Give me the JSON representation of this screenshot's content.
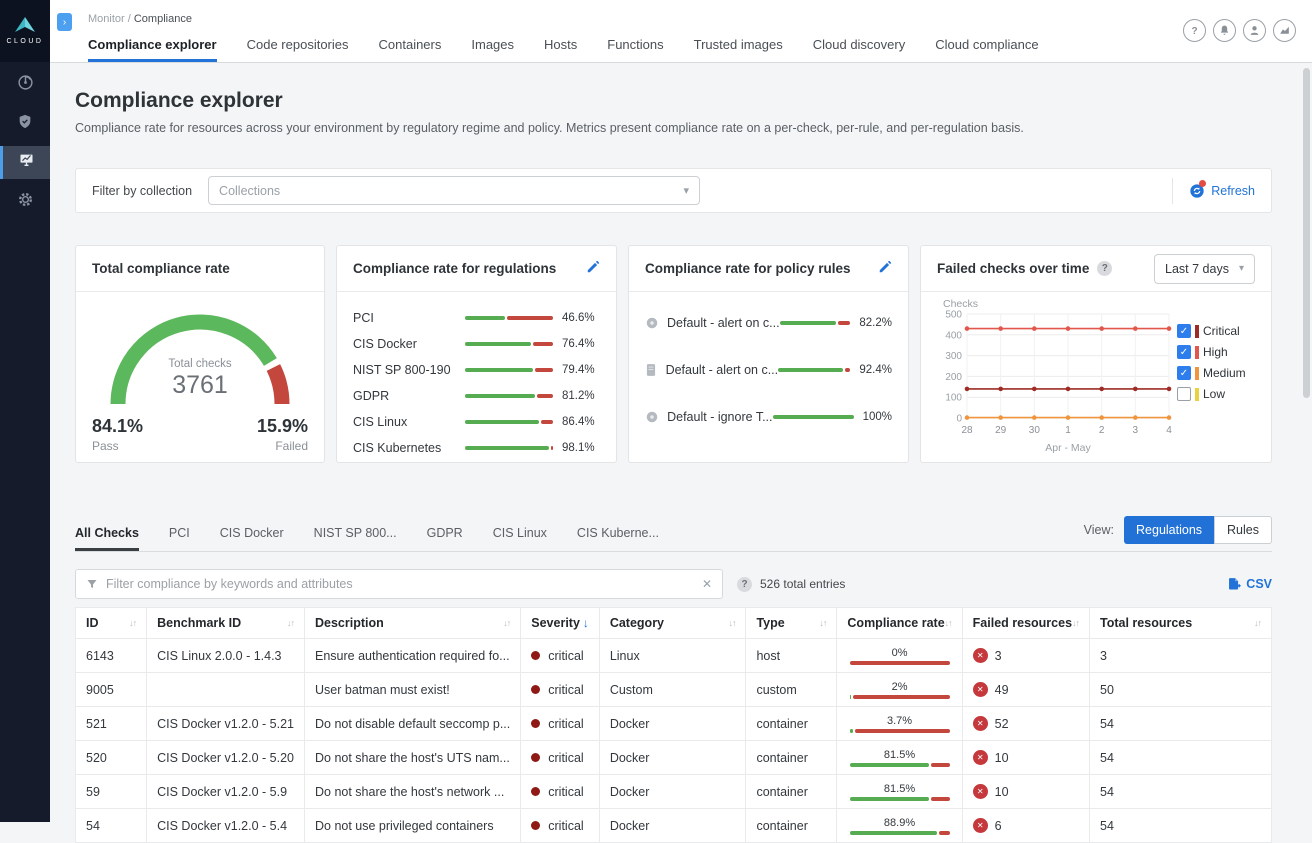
{
  "colors": {
    "accent_blue": "#2272d8",
    "green": "#56ac50",
    "red": "#c4473e",
    "severity_critical": "#8f1a15",
    "line_critical": "#9e2b24",
    "line_high": "#e2574c",
    "line_medium": "#f0953f",
    "line_low": "#e8d23f",
    "legend_checkbox": "#2e7ded"
  },
  "sidebar": {
    "logo_text": "CLOUD",
    "items": [
      {
        "icon": "radar-icon",
        "active": false
      },
      {
        "icon": "defend-shield-icon",
        "active": false
      },
      {
        "icon": "monitor-chart-icon",
        "active": true
      },
      {
        "icon": "settings-gear-icon",
        "active": false
      }
    ]
  },
  "topbar": {
    "breadcrumb": {
      "parent": "Monitor /",
      "current": "Compliance"
    },
    "icons": [
      "help-icon",
      "notifications-bell-icon",
      "user-icon",
      "stats-icon"
    ]
  },
  "nav_tabs": {
    "active_index": 0,
    "items": [
      "Compliance explorer",
      "Code repositories",
      "Containers",
      "Images",
      "Hosts",
      "Functions",
      "Trusted images",
      "Cloud discovery",
      "Cloud compliance"
    ]
  },
  "page": {
    "title": "Compliance explorer",
    "description": "Compliance rate for resources across your environment by regulatory regime and policy. Metrics present compliance rate on a per-check, per-rule, and per-regulation basis."
  },
  "filter_bar": {
    "label": "Filter by collection",
    "placeholder": "Collections",
    "refresh_label": "Refresh"
  },
  "cards": {
    "gauge": {
      "title": "Total compliance rate",
      "center_label": "Total checks",
      "center_value": "3761",
      "pass_display": "84.1%",
      "pass_label": "Pass",
      "pass_pct": 84.1,
      "failed_display": "15.9%",
      "failed_label": "Failed",
      "failed_pct": 15.9,
      "chart_data": {
        "type": "gauge",
        "pass_pct": 84.1,
        "failed_pct": 15.9,
        "total_checks": 3761
      }
    },
    "regulations": {
      "title": "Compliance rate for regulations",
      "chart_data": {
        "type": "bar",
        "categories": [
          "PCI",
          "CIS Docker",
          "NIST SP 800-190",
          "GDPR",
          "CIS Linux",
          "CIS Kubernetes"
        ],
        "values": [
          46.6,
          76.4,
          79.4,
          81.2,
          86.4,
          98.1
        ]
      },
      "rows": [
        {
          "label": "PCI",
          "pct": 46.6,
          "display": "46.6%"
        },
        {
          "label": "CIS Docker",
          "pct": 76.4,
          "display": "76.4%"
        },
        {
          "label": "NIST SP 800-190",
          "pct": 79.4,
          "display": "79.4%"
        },
        {
          "label": "GDPR",
          "pct": 81.2,
          "display": "81.2%"
        },
        {
          "label": "CIS Linux",
          "pct": 86.4,
          "display": "86.4%"
        },
        {
          "label": "CIS Kubernetes",
          "pct": 98.1,
          "display": "98.1%"
        }
      ]
    },
    "policy_rules": {
      "title": "Compliance rate for policy rules",
      "rows": [
        {
          "icon": "containers-icon",
          "label": "Default - alert on c...",
          "pct": 82.2,
          "display": "82.2%"
        },
        {
          "icon": "hosts-icon",
          "label": "Default - alert on c...",
          "pct": 92.4,
          "display": "92.4%"
        },
        {
          "icon": "containers-icon",
          "label": "Default - ignore T...",
          "pct": 100,
          "display": "100%"
        }
      ]
    },
    "failed_checks": {
      "title": "Failed checks over time",
      "range_label": "Last 7 days",
      "chart_data": {
        "type": "line",
        "x": [
          "28",
          "29",
          "30",
          "1",
          "2",
          "3",
          "4"
        ],
        "xlabel": "Apr - May",
        "ylabel": "Checks",
        "ylim": [
          0,
          500
        ],
        "yticks": [
          0,
          100,
          200,
          300,
          400,
          500
        ],
        "grid": true,
        "legend_position": "right",
        "series": [
          {
            "name": "Critical",
            "color": "#9e2b24",
            "checked": true,
            "values": [
              140,
              140,
              140,
              140,
              140,
              140,
              140
            ]
          },
          {
            "name": "High",
            "color": "#e2574c",
            "checked": true,
            "values": [
              430,
              430,
              430,
              430,
              430,
              430,
              430
            ]
          },
          {
            "name": "Medium",
            "color": "#f0953f",
            "checked": true,
            "values": [
              2,
              2,
              2,
              2,
              2,
              2,
              2
            ]
          },
          {
            "name": "Low",
            "color": "#e8d23f",
            "checked": false,
            "values": []
          }
        ]
      }
    }
  },
  "table_section": {
    "tabs": {
      "active_index": 0,
      "items": [
        "All Checks",
        "PCI",
        "CIS Docker",
        "NIST SP 800...",
        "GDPR",
        "CIS Linux",
        "CIS Kuberne..."
      ]
    },
    "view_label": "View:",
    "view_options": {
      "selected": "Regulations",
      "items": [
        "Regulations",
        "Rules"
      ]
    },
    "search_placeholder": "Filter compliance by keywords and attributes",
    "entries_label": "526 total entries",
    "csv_label": "CSV",
    "columns": [
      {
        "label": "ID",
        "sort": "both"
      },
      {
        "label": "Benchmark ID",
        "sort": "both"
      },
      {
        "label": "Description",
        "sort": "both"
      },
      {
        "label": "Severity",
        "sort": "desc"
      },
      {
        "label": "Category",
        "sort": "both"
      },
      {
        "label": "Type",
        "sort": "both"
      },
      {
        "label": "Compliance rate",
        "sort": "both"
      },
      {
        "label": "Failed resources",
        "sort": "both"
      },
      {
        "label": "Total resources",
        "sort": "both"
      }
    ],
    "rows": [
      {
        "id": "6143",
        "benchmark": "CIS Linux 2.0.0 - 1.4.3",
        "description": "Ensure authentication required fo...",
        "severity": "critical",
        "category": "Linux",
        "type": "host",
        "rate_display": "0%",
        "rate_pct": 0,
        "failed": "3",
        "total": "3"
      },
      {
        "id": "9005",
        "benchmark": "",
        "description": "User batman must exist!",
        "severity": "critical",
        "category": "Custom",
        "type": "custom",
        "rate_display": "2%",
        "rate_pct": 2,
        "failed": "49",
        "total": "50"
      },
      {
        "id": "521",
        "benchmark": "CIS Docker v1.2.0 - 5.21",
        "description": "Do not disable default seccomp p...",
        "severity": "critical",
        "category": "Docker",
        "type": "container",
        "rate_display": "3.7%",
        "rate_pct": 3.7,
        "failed": "52",
        "total": "54"
      },
      {
        "id": "520",
        "benchmark": "CIS Docker v1.2.0 - 5.20",
        "description": "Do not share the host's UTS nam...",
        "severity": "critical",
        "category": "Docker",
        "type": "container",
        "rate_display": "81.5%",
        "rate_pct": 81.5,
        "failed": "10",
        "total": "54"
      },
      {
        "id": "59",
        "benchmark": "CIS Docker v1.2.0 - 5.9",
        "description": "Do not share the host's network ...",
        "severity": "critical",
        "category": "Docker",
        "type": "container",
        "rate_display": "81.5%",
        "rate_pct": 81.5,
        "failed": "10",
        "total": "54"
      },
      {
        "id": "54",
        "benchmark": "CIS Docker v1.2.0 - 5.4",
        "description": "Do not use privileged containers",
        "severity": "critical",
        "category": "Docker",
        "type": "container",
        "rate_display": "88.9%",
        "rate_pct": 88.9,
        "failed": "6",
        "total": "54"
      }
    ]
  }
}
